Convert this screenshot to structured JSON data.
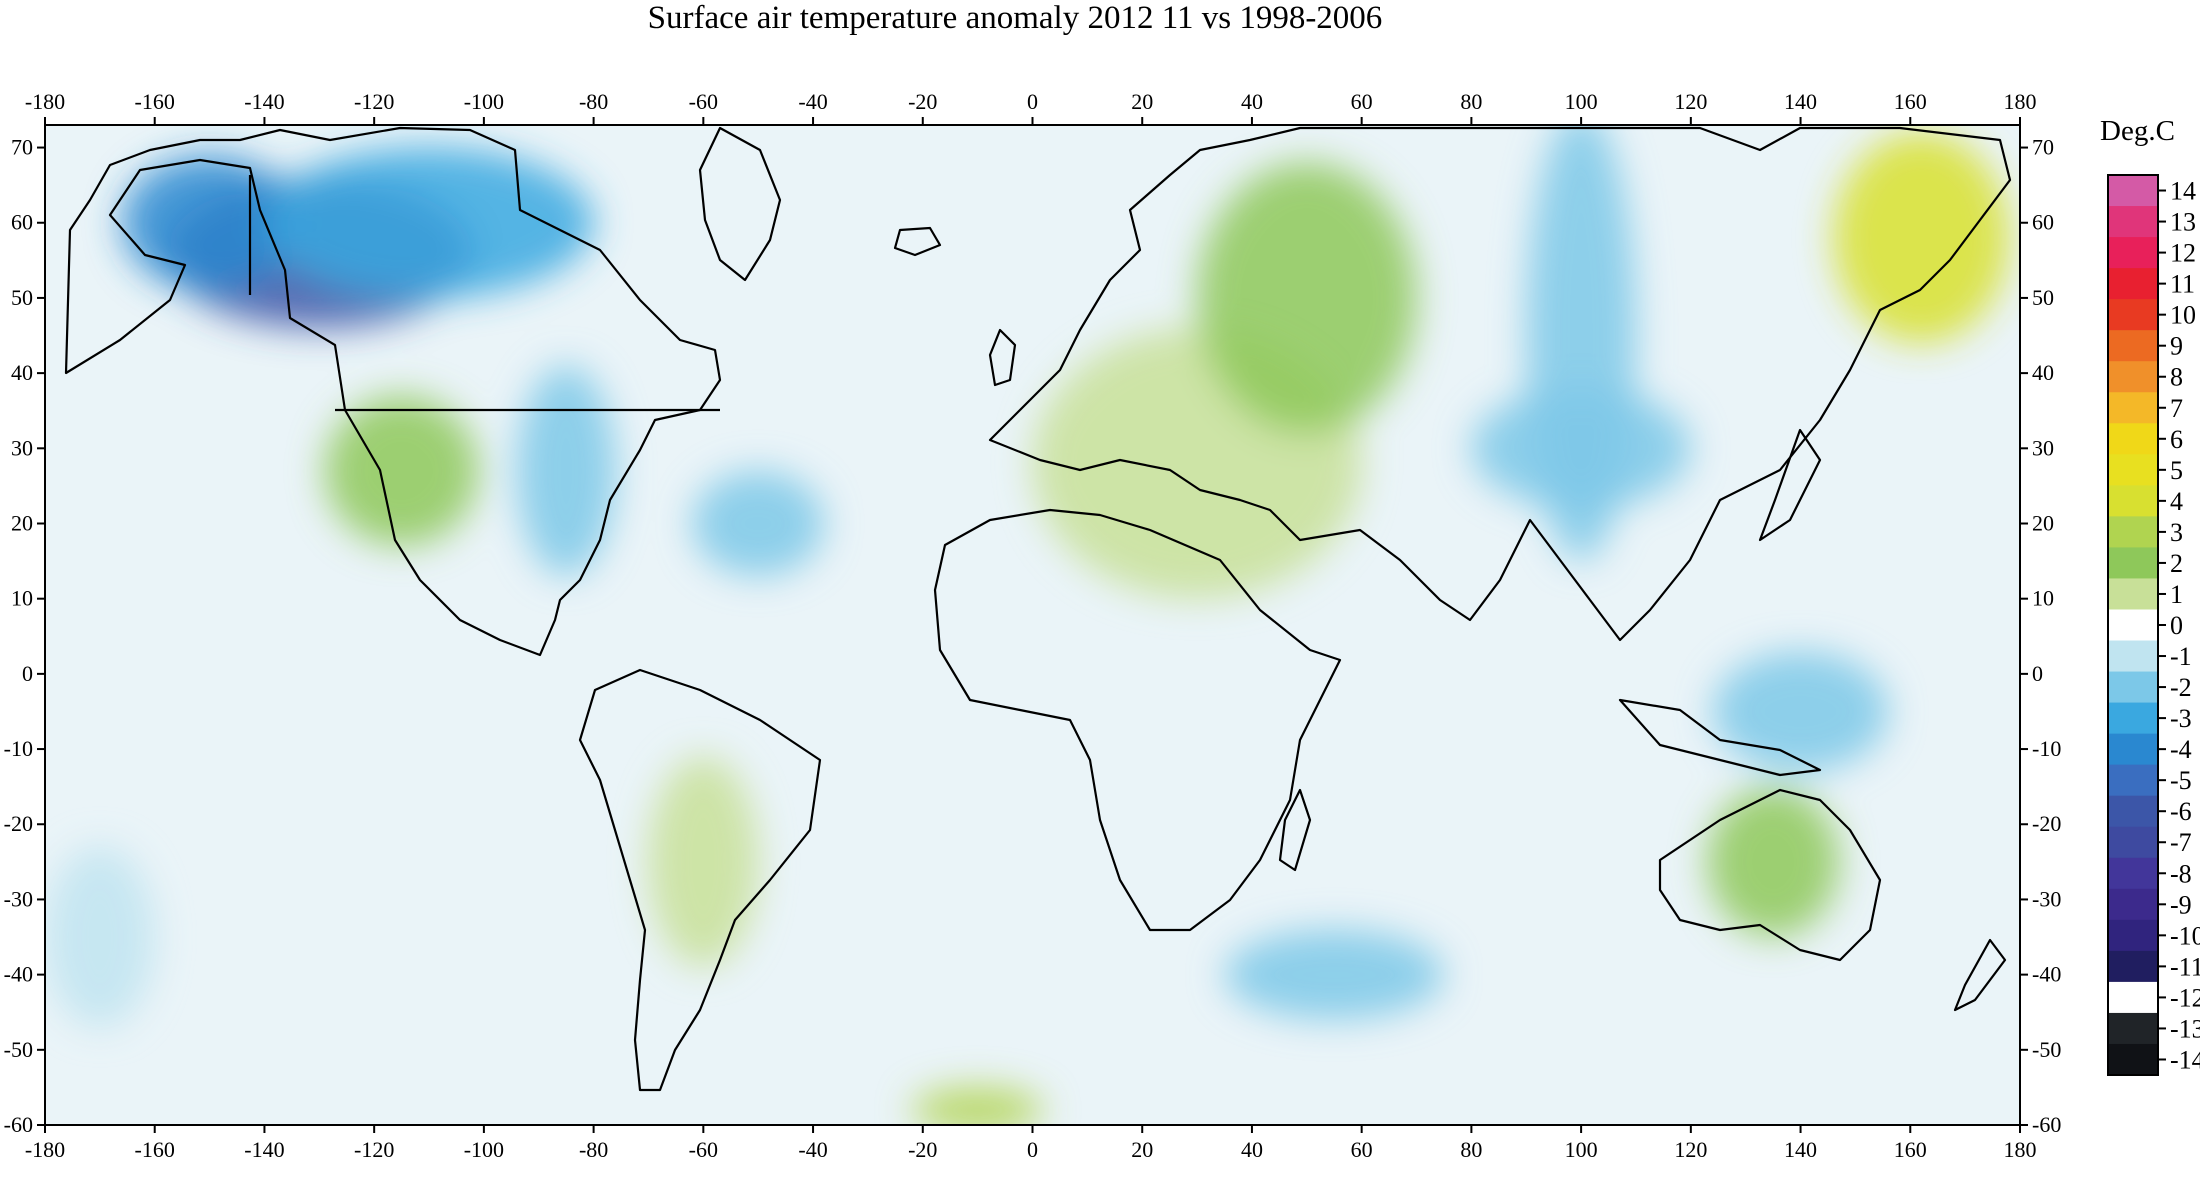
{
  "title": "Surface air temperature anomaly 2012 11 vs 1998-2006",
  "colorbar": {
    "label": "Deg.C",
    "ticks": [
      "14",
      "13",
      "12",
      "11",
      "10",
      "9",
      "8",
      "7",
      "6",
      "5",
      "4",
      "3",
      "2",
      "1",
      "0",
      "-1",
      "-2",
      "-3",
      "-4",
      "-5",
      "-6",
      "-7",
      "-8",
      "-9",
      "-10",
      "-11",
      "-12",
      "-13",
      "-14"
    ],
    "colors": [
      "#d45aa6",
      "#e0357a",
      "#e8205a",
      "#e82030",
      "#e83a22",
      "#ec6a22",
      "#f0902a",
      "#f4b828",
      "#f0d818",
      "#e8e020",
      "#d8e030",
      "#b0d450",
      "#8ec85a",
      "#c8e098",
      "#ffffff",
      "#c0e4f0",
      "#7cc8e8",
      "#3aa8e0",
      "#2a88d0",
      "#3a6ec0",
      "#3c56a8",
      "#3e4aa0",
      "#42369a",
      "#3c2a8c",
      "#30247e",
      "#201e60",
      "#ffffff",
      "#202428",
      "#101216"
    ]
  },
  "axes": {
    "x_ticks": [
      "-180",
      "-160",
      "-140",
      "-120",
      "-100",
      "-80",
      "-60",
      "-40",
      "-20",
      "0",
      "20",
      "40",
      "60",
      "80",
      "100",
      "120",
      "140",
      "160",
      "180"
    ],
    "y_ticks": [
      "70",
      "60",
      "50",
      "40",
      "30",
      "20",
      "10",
      "0",
      "-10",
      "-20",
      "-30",
      "-40",
      "-50",
      "-60"
    ],
    "x_range": [
      -180,
      180
    ],
    "y_range": [
      -60,
      73
    ]
  },
  "anomaly_regions": [
    {
      "lon": -130,
      "lat": 56,
      "rx": 28,
      "ry": 10,
      "value": -6
    },
    {
      "lon": -150,
      "lat": 60,
      "rx": 16,
      "ry": 9,
      "value": -4
    },
    {
      "lon": -110,
      "lat": 60,
      "rx": 30,
      "ry": 10,
      "value": -3
    },
    {
      "lon": -85,
      "lat": 27,
      "rx": 9,
      "ry": 14,
      "value": -2
    },
    {
      "lon": -115,
      "lat": 27,
      "rx": 14,
      "ry": 10,
      "value": 1.5
    },
    {
      "lon": -50,
      "lat": 20,
      "rx": 12,
      "ry": 7,
      "value": -2
    },
    {
      "lon": 30,
      "lat": 28,
      "rx": 30,
      "ry": 18,
      "value": 1
    },
    {
      "lon": 50,
      "lat": 50,
      "rx": 20,
      "ry": 18,
      "value": 2
    },
    {
      "lon": 100,
      "lat": 45,
      "rx": 10,
      "ry": 30,
      "value": -2
    },
    {
      "lon": 100,
      "lat": 30,
      "rx": 20,
      "ry": 8,
      "value": -2.5
    },
    {
      "lon": 162,
      "lat": 58,
      "rx": 16,
      "ry": 14,
      "value": 4
    },
    {
      "lon": 135,
      "lat": -25,
      "rx": 12,
      "ry": 10,
      "value": 1.5
    },
    {
      "lon": 140,
      "lat": -5,
      "rx": 16,
      "ry": 8,
      "value": -2
    },
    {
      "lon": 55,
      "lat": -40,
      "rx": 20,
      "ry": 6,
      "value": -2
    },
    {
      "lon": -10,
      "lat": -58,
      "rx": 12,
      "ry": 3,
      "value": 3
    },
    {
      "lon": -170,
      "lat": -35,
      "rx": 10,
      "ry": 12,
      "value": -1.5
    },
    {
      "lon": -60,
      "lat": -25,
      "rx": 10,
      "ry": 14,
      "value": 1
    }
  ]
}
